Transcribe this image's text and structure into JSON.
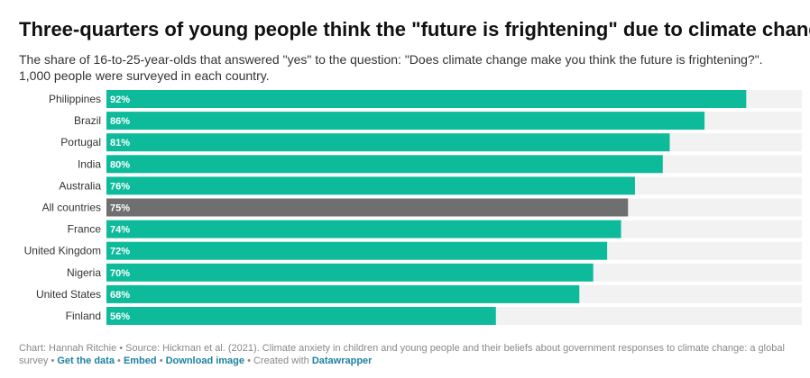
{
  "header": {
    "title": "Three-quarters of young people think the \"future is frightening\" due to climate change",
    "subtitle": "The share of 16-to-25-year-olds that answered \"yes\" to the question: \"Does climate change make you think the future is frightening?\". 1,000 people were surveyed in each country."
  },
  "colors": {
    "bar": "#0dbb9b",
    "highlight": "#6f6f6f",
    "track": "#f2f2f2"
  },
  "chart_data": {
    "type": "bar",
    "orientation": "horizontal",
    "categories": [
      "Philippines",
      "Brazil",
      "Portugal",
      "India",
      "Australia",
      "All countries",
      "France",
      "United Kingdom",
      "Nigeria",
      "United States",
      "Finland"
    ],
    "values": [
      92,
      86,
      81,
      80,
      76,
      75,
      74,
      72,
      70,
      68,
      56
    ],
    "value_labels": [
      "92%",
      "86%",
      "81%",
      "80%",
      "76%",
      "75%",
      "74%",
      "72%",
      "70%",
      "68%",
      "56%"
    ],
    "highlighted_category": "All countries",
    "xlim": [
      0,
      100
    ],
    "grid": false,
    "legend": "none"
  },
  "footer": {
    "credit": "Chart: Hannah Ritchie • Source: Hickman et al. (2021). Climate anxiety in children and young people and their beliefs about government responses to climate change: a global survey •",
    "get_data": "Get the data",
    "sep": "•",
    "embed": "Embed",
    "download": "Download image",
    "created_with": "• Created with",
    "datawrapper": "Datawrapper"
  }
}
